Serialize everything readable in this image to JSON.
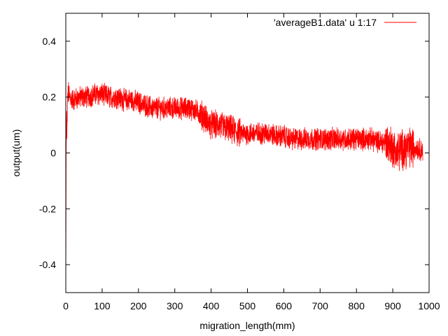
{
  "chart_data": {
    "type": "line",
    "title": "",
    "xlabel": "migration_length(mm)",
    "ylabel": "output(um)",
    "xlim": [
      0,
      1000
    ],
    "ylim": [
      -0.5,
      0.5
    ],
    "x_ticks": [
      "0",
      "100",
      "200",
      "300",
      "400",
      "500",
      "600",
      "700",
      "800",
      "900",
      "1000"
    ],
    "y_ticks": [
      "-0.4",
      "-0.2",
      "0",
      "0.2",
      "0.4"
    ],
    "grid": false,
    "legend_position": "top-right",
    "series": [
      {
        "name": "'averageB1.data' u 1:17",
        "color": "#ff0000",
        "x_start": 0,
        "x_end": 983,
        "x": [
          0,
          1,
          2,
          3,
          5,
          8,
          10,
          20,
          40,
          60,
          80,
          100,
          120,
          140,
          160,
          180,
          200,
          220,
          240,
          260,
          280,
          300,
          320,
          340,
          360,
          380,
          390,
          400,
          420,
          440,
          460,
          480,
          500,
          520,
          540,
          560,
          580,
          600,
          620,
          640,
          660,
          680,
          700,
          720,
          740,
          760,
          780,
          800,
          820,
          840,
          860,
          880,
          900,
          910,
          920,
          940,
          960,
          983
        ],
        "y": [
          -0.5,
          0.0,
          0.15,
          0.05,
          0.2,
          0.22,
          0.2,
          0.19,
          0.2,
          0.2,
          0.21,
          0.21,
          0.2,
          0.2,
          0.19,
          0.19,
          0.18,
          0.17,
          0.16,
          0.16,
          0.16,
          0.16,
          0.16,
          0.16,
          0.15,
          0.13,
          0.11,
          0.1,
          0.1,
          0.09,
          0.08,
          0.07,
          0.07,
          0.07,
          0.07,
          0.07,
          0.06,
          0.06,
          0.05,
          0.05,
          0.05,
          0.05,
          0.05,
          0.05,
          0.05,
          0.05,
          0.05,
          0.05,
          0.05,
          0.05,
          0.04,
          0.04,
          0.02,
          0.0,
          0.01,
          0.02,
          0.02,
          0.01
        ],
        "noise_amplitude": 0.035
      }
    ]
  }
}
